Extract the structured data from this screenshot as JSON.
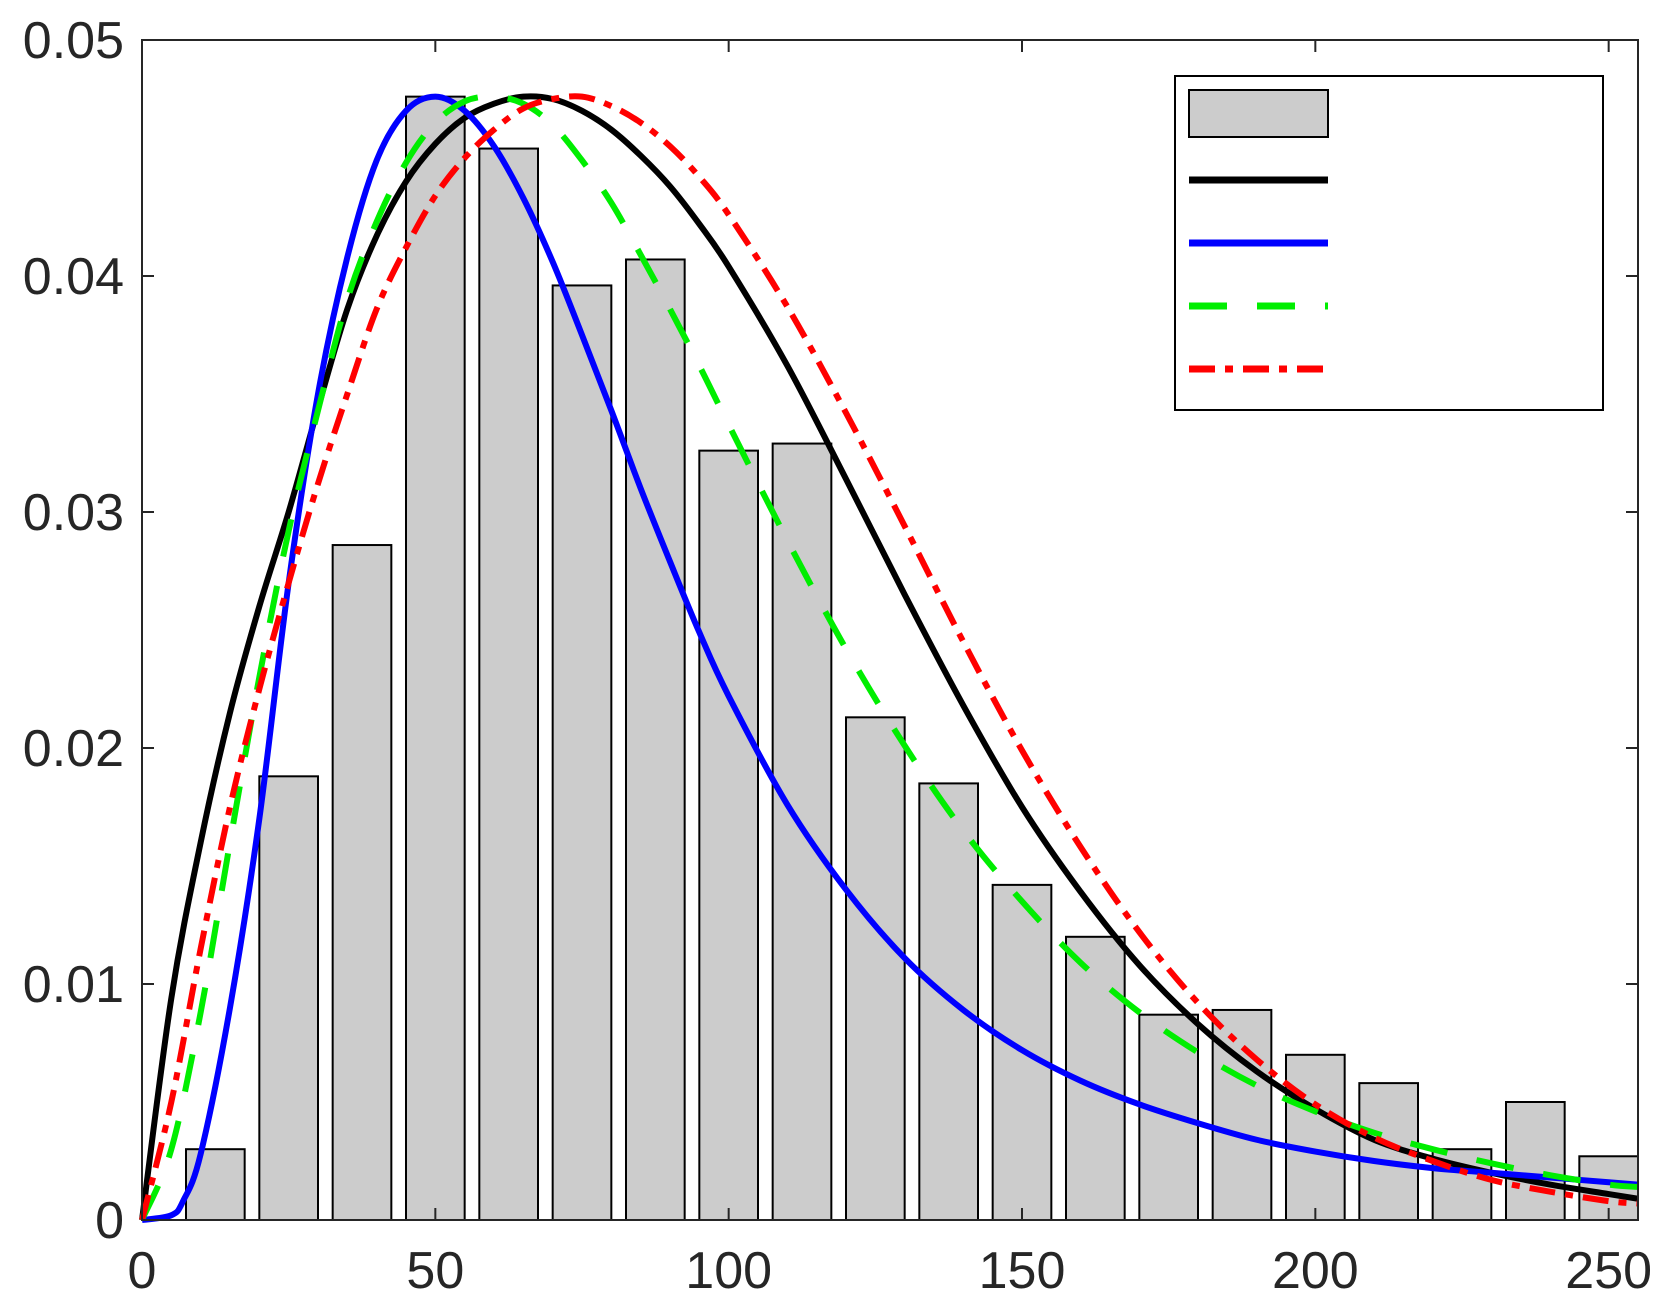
{
  "chart_data": {
    "type": "bar",
    "title": "",
    "xlabel": "",
    "ylabel": "",
    "xlim": [
      0,
      255
    ],
    "ylim": [
      0,
      0.05
    ],
    "xticks": [
      0,
      50,
      100,
      150,
      200,
      250
    ],
    "yticks": [
      0,
      0.01,
      0.02,
      0.03,
      0.04,
      0.05
    ],
    "xtick_labels": [
      "0",
      "50",
      "100",
      "150",
      "200",
      "250"
    ],
    "ytick_labels": [
      "0",
      "0.01",
      "0.02",
      "0.03",
      "0.04",
      "0.05"
    ],
    "grid": false,
    "legend": "top-right",
    "histogram": {
      "bin_width": 12.5,
      "bar_width": 10,
      "color": "#cccccc",
      "edge_color": "#000000",
      "bin_centers": [
        12.5,
        25,
        37.5,
        50,
        62.5,
        75,
        87.5,
        100,
        112.5,
        125,
        137.5,
        150,
        162.5,
        175,
        187.5,
        200,
        212.5,
        225,
        237.5,
        250
      ],
      "values": [
        0.003,
        0.0188,
        0.0286,
        0.0476,
        0.0454,
        0.0396,
        0.0407,
        0.0326,
        0.0329,
        0.0213,
        0.0185,
        0.0142,
        0.012,
        0.0087,
        0.0089,
        0.007,
        0.0058,
        0.003,
        0.005,
        0.0027
      ]
    },
    "series": [
      {
        "style": "solid",
        "color": "#000000",
        "x": [
          0,
          5,
          10,
          15,
          20,
          25,
          30,
          35,
          40,
          45,
          50,
          55,
          60,
          65,
          70,
          75,
          80,
          85,
          90,
          95,
          100,
          110,
          120,
          130,
          140,
          150,
          160,
          170,
          180,
          190,
          200,
          210,
          220,
          230,
          240,
          250,
          255
        ],
        "y": [
          0,
          0.0094,
          0.016,
          0.0215,
          0.026,
          0.03,
          0.0344,
          0.0386,
          0.0417,
          0.044,
          0.0456,
          0.0467,
          0.0473,
          0.0476,
          0.0475,
          0.047,
          0.0462,
          0.0451,
          0.0438,
          0.0422,
          0.0404,
          0.0362,
          0.0314,
          0.0265,
          0.0218,
          0.0175,
          0.0139,
          0.0108,
          0.0083,
          0.0063,
          0.0047,
          0.0034,
          0.0026,
          0.002,
          0.0015,
          0.0011,
          0.0009
        ]
      },
      {
        "style": "solid",
        "color": "#0000ff",
        "x": [
          0,
          5,
          7,
          10,
          15,
          20,
          25,
          30,
          35,
          40,
          45,
          50,
          55,
          60,
          65,
          70,
          75,
          80,
          85,
          90,
          95,
          100,
          110,
          120,
          130,
          140,
          150,
          160,
          170,
          180,
          190,
          200,
          210,
          220,
          230,
          240,
          250,
          255
        ],
        "y": [
          0,
          0.0002,
          0.0008,
          0.0028,
          0.009,
          0.017,
          0.027,
          0.035,
          0.0408,
          0.0449,
          0.047,
          0.0476,
          0.047,
          0.0455,
          0.0433,
          0.0406,
          0.0375,
          0.0343,
          0.031,
          0.0279,
          0.0249,
          0.0222,
          0.0176,
          0.014,
          0.0111,
          0.0089,
          0.0072,
          0.0059,
          0.0049,
          0.0041,
          0.0034,
          0.0029,
          0.0025,
          0.0022,
          0.002,
          0.0018,
          0.0016,
          0.0015
        ]
      },
      {
        "style": "dashed",
        "color": "#00ee00",
        "x": [
          0,
          5,
          10,
          15,
          20,
          25,
          30,
          35,
          40,
          45,
          50,
          55,
          60,
          65,
          70,
          75,
          80,
          85,
          90,
          95,
          100,
          110,
          120,
          130,
          140,
          150,
          160,
          170,
          180,
          190,
          200,
          210,
          220,
          230,
          240,
          250,
          255
        ],
        "y": [
          0,
          0.003,
          0.0088,
          0.016,
          0.023,
          0.0292,
          0.0343,
          0.039,
          0.0423,
          0.0448,
          0.0465,
          0.0474,
          0.0476,
          0.0473,
          0.0464,
          0.0449,
          0.0431,
          0.0409,
          0.0386,
          0.0362,
          0.0337,
          0.0288,
          0.0242,
          0.0201,
          0.0165,
          0.0135,
          0.0109,
          0.0088,
          0.0071,
          0.0057,
          0.0046,
          0.0037,
          0.003,
          0.0024,
          0.0019,
          0.0015,
          0.0014
        ]
      },
      {
        "style": "dash-dot",
        "color": "#ff0000",
        "x": [
          0,
          5,
          10,
          15,
          20,
          25,
          30,
          35,
          40,
          45,
          50,
          55,
          60,
          65,
          70,
          75,
          80,
          85,
          90,
          95,
          100,
          110,
          120,
          130,
          140,
          150,
          160,
          170,
          180,
          190,
          200,
          210,
          220,
          230,
          240,
          250,
          255
        ],
        "y": [
          0,
          0.005,
          0.0115,
          0.0175,
          0.0225,
          0.027,
          0.0312,
          0.035,
          0.0386,
          0.0412,
          0.0434,
          0.045,
          0.0462,
          0.0471,
          0.0475,
          0.0476,
          0.0472,
          0.0465,
          0.0455,
          0.0442,
          0.0426,
          0.0387,
          0.0342,
          0.0294,
          0.0245,
          0.0199,
          0.0158,
          0.0122,
          0.0092,
          0.0068,
          0.0049,
          0.0035,
          0.0025,
          0.0017,
          0.0012,
          0.0008,
          0.0007
        ]
      }
    ]
  }
}
